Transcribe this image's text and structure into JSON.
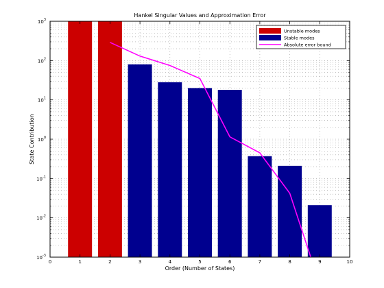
{
  "chart_data": {
    "type": "bar",
    "title": "Hankel Singular Values and Approximation Error",
    "xlabel": "Order (Number of States)",
    "ylabel": "State Contribution",
    "xlim": [
      0,
      10
    ],
    "ylim_exp": [
      -3,
      3
    ],
    "yscale": "log",
    "grid": true,
    "legend_position": "top-right",
    "x_ticks": [
      "0",
      "1",
      "2",
      "3",
      "4",
      "5",
      "6",
      "7",
      "8",
      "9",
      "10"
    ],
    "y_tick_base": "10",
    "y_tick_exponents": [
      "-3",
      "-2",
      "-1",
      "0",
      "1",
      "2",
      "3"
    ],
    "series": [
      {
        "name": "Unstable modes",
        "kind": "bar",
        "color": "#cc0000",
        "x": [
          1,
          2
        ],
        "values": [
          1000,
          1000
        ]
      },
      {
        "name": "Stable modes",
        "kind": "bar",
        "color": "#00008f",
        "x": [
          3,
          4,
          5,
          6,
          7,
          8,
          9
        ],
        "values": [
          80,
          28,
          20,
          18,
          0.37,
          0.21,
          0.021
        ]
      },
      {
        "name": "Absolute error bound",
        "kind": "line",
        "color": "#ff00ff",
        "x": [
          2,
          3,
          4,
          5,
          6,
          7,
          8,
          8.7
        ],
        "values": [
          290,
          130,
          75,
          35,
          1.15,
          0.45,
          0.042,
          0.001
        ]
      }
    ]
  }
}
